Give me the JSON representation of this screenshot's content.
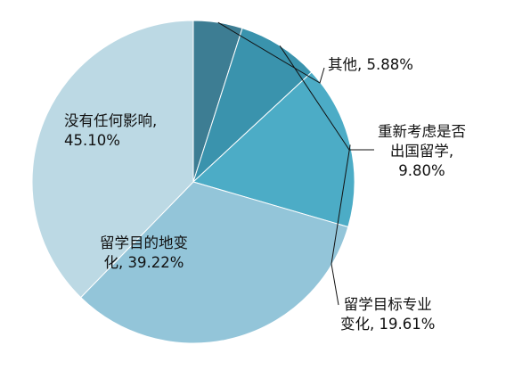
{
  "chart_data": {
    "type": "pie",
    "title": "",
    "slices": [
      {
        "label": "没有任何影响",
        "value": 45.1,
        "display": "45.10%",
        "color": "#bcd9e4"
      },
      {
        "label": "留学目的地变化",
        "value": 39.22,
        "display": "39.22%",
        "color": "#93c5d9"
      },
      {
        "label": "留学目标专业变化",
        "value": 19.61,
        "display": "19.61%",
        "color": "#4cacc6"
      },
      {
        "label": "重新考虑是否出国留学",
        "value": 9.8,
        "display": "9.80%",
        "color": "#3a93ad"
      },
      {
        "label": "其他",
        "value": 5.88,
        "display": "5.88%",
        "color": "#3d7d93"
      }
    ],
    "legend": "none",
    "label_lines": {
      "s0": [
        "没有任何影响,",
        "45.10%"
      ],
      "s1": [
        "留学目的地变",
        "化, 39.22%"
      ],
      "s2": [
        "留学目标专业",
        "变化, 19.61%"
      ],
      "s3": [
        "重新考虑是否",
        "出国留学,",
        "9.80%"
      ],
      "s4": [
        "其他, 5.88%"
      ]
    }
  }
}
